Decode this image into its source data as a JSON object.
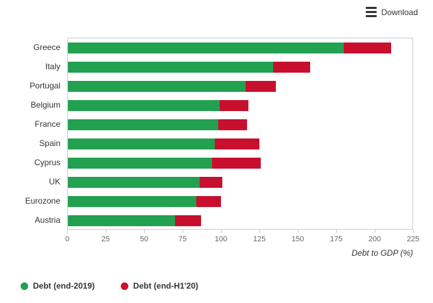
{
  "toolbar": {
    "download_label": "Download"
  },
  "chart_data": {
    "type": "bar",
    "orientation": "horizontal",
    "stacked": true,
    "title": "",
    "xlabel": "Debt to GDP (%)",
    "ylabel": "",
    "xlim": [
      0,
      225
    ],
    "xticks": [
      0,
      25,
      50,
      75,
      100,
      125,
      150,
      175,
      200,
      225
    ],
    "grid": false,
    "legend_position": "bottom-left",
    "categories": [
      "Greece",
      "Italy",
      "Portugal",
      "Belgium",
      "France",
      "Spain",
      "Cyprus",
      "UK",
      "Eurozone",
      "Austria"
    ],
    "series": [
      {
        "name": "Debt (end-2019)",
        "color": "#22a150",
        "values": [
          180,
          134,
          116,
          99,
          98,
          96,
          94,
          86,
          84,
          70
        ]
      },
      {
        "name": "Debt (end-H1'20)",
        "color": "#c8102e",
        "values": [
          31,
          24,
          20,
          19,
          19,
          29,
          32,
          15,
          16,
          17
        ]
      }
    ],
    "totals_end_h1_20": [
      211,
      158,
      136,
      118,
      117,
      125,
      126,
      101,
      100,
      87
    ]
  }
}
